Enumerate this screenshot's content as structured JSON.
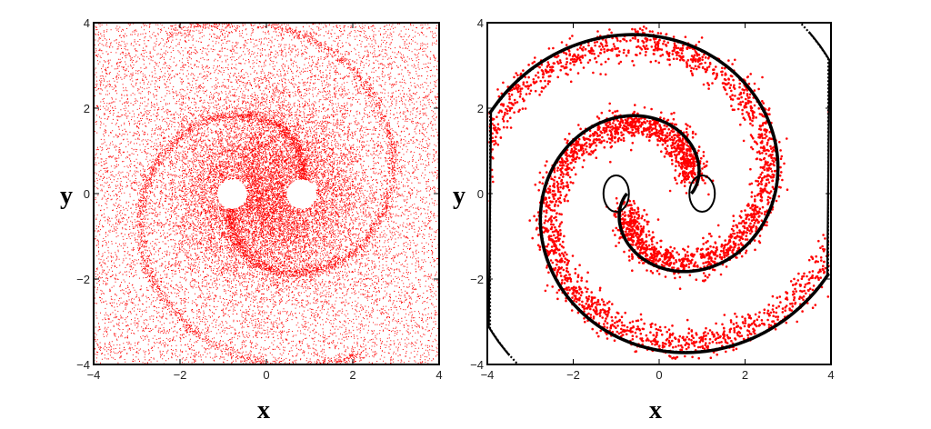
{
  "chart_data": [
    {
      "type": "scatter",
      "title": "",
      "xlabel": "x",
      "ylabel": "y",
      "xlim": [
        -4,
        4
      ],
      "ylim": [
        -4,
        4
      ],
      "xticks": [
        -4,
        -2,
        0,
        2,
        4
      ],
      "yticks": [
        -4,
        -2,
        0,
        2,
        4
      ],
      "tick_labels": [
        "−4",
        "−2",
        "0",
        "2",
        "4"
      ],
      "grid": false,
      "legend": "none",
      "series": [
        {
          "color": "#ff0000",
          "marker": "dot-tiny",
          "description_values": {
            "points_approx": 60000,
            "pattern": "dense diffuse cloud concentrated near center with spiral filaments and two holes near (-0.8,0) and (0.8,0)"
          }
        }
      ]
    },
    {
      "type": "scatter",
      "title": "",
      "xlabel": "x",
      "ylabel": "y",
      "xlim": [
        -4,
        4
      ],
      "ylim": [
        -4,
        4
      ],
      "xticks": [
        -4,
        -2,
        0,
        2,
        4
      ],
      "yticks": [
        -4,
        -2,
        0,
        2,
        4
      ],
      "tick_labels": [
        "−4",
        "−2",
        "0",
        "2",
        "4"
      ],
      "grid": false,
      "legend": "none",
      "series": [
        {
          "color": "#000000",
          "marker": "dot",
          "pattern": "two-armed spiral curves"
        },
        {
          "color": "#ff0000",
          "marker": "dot",
          "pattern": "points filling bands between spiral arms"
        }
      ]
    }
  ],
  "colors": {
    "red": "#ff0000",
    "black": "#000000",
    "frame": "#000000"
  }
}
